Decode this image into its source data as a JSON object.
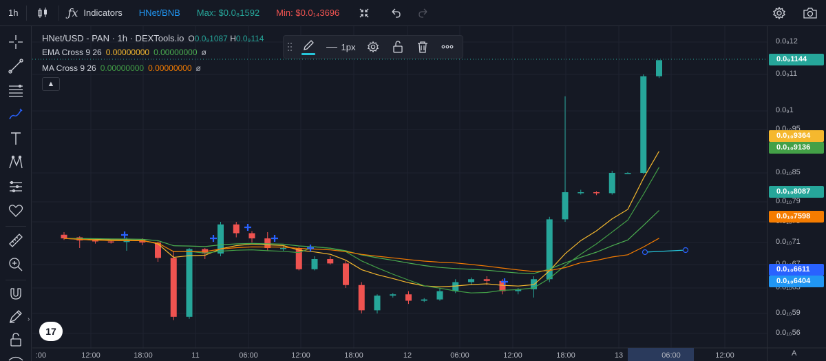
{
  "toolbar": {
    "interval": "1h",
    "indicators_label": "Indicators",
    "pair": "HNet/BNB",
    "max": "Max: $0.0₈1592",
    "min": "Min: $0.0₁₄3696"
  },
  "legend": {
    "title": "HNet/USD - PAN · 1h · DEXTools.io",
    "o_label": "O",
    "o_value": "0.0₉1087",
    "h_label": "H",
    "h_value": "0.0₉114",
    "ema_name": "EMA Cross 9 26",
    "ema_v1": "0.00000000",
    "ema_v2": "0.00000000",
    "ema_v3": "ø",
    "ma_name": "MA Cross 9 26",
    "ma_v1": "0.00000000",
    "ma_v2": "0.00000000",
    "ma_v3": "ø"
  },
  "drawing_toolbar": {
    "width_label": "1px"
  },
  "colors": {
    "bg": "#151924",
    "up": "#26a69a",
    "down": "#ef5350",
    "ema_fast": "#f5b82e",
    "ema_slow": "#4caf50",
    "ma_fast": "#43a047",
    "ma_slow": "#f57c00",
    "blue": "#2962ff",
    "toolbar_pair": "#2196f3",
    "toolbar_max": "#26a69a",
    "toolbar_min": "#ef5350"
  },
  "chart_data": {
    "type": "candlestick",
    "title": "HNet/USD - PAN · 1h · DEXTools.io",
    "x_ticks": [
      ":00",
      "12:00",
      "18:00",
      "11",
      "06:00",
      "12:00",
      "18:00",
      "12",
      "06:00",
      "12:00",
      "18:00",
      "13",
      "06:00",
      "12:00"
    ],
    "price_ticks": [
      "0.0₉12",
      "0.0₉11",
      "0.0₉1",
      "0.0₁₀95",
      "0.0₁₀85",
      "0.0₁₀79",
      "0.0₁₀75",
      "0.0₁₀71",
      "0.0₁₀67",
      "0.0₁₀63",
      "0.0₁₀59",
      "0.0₁₀56"
    ],
    "price_labels": [
      {
        "text": "0.0₉1144",
        "color": "#26a69a"
      },
      {
        "text": "0.0₁₀9364",
        "color": "#f5b82e"
      },
      {
        "text": "0.0₁₀9136",
        "color": "#43a047"
      },
      {
        "text": "0.0₁₀8087",
        "color": "#26a69a"
      },
      {
        "text": "0.0₁₀7598",
        "color": "#f57c00"
      },
      {
        "text": "0.0₁₀6611",
        "color": "#2962ff"
      },
      {
        "text": "0.0₁₀6404",
        "color": "#2196f3"
      }
    ],
    "price_range": [
      5.52e-11,
      1.2e-09
    ],
    "candles_note": "approximate prices in units of 1e-10",
    "candles": [
      [
        7.25,
        7.3,
        7.15,
        7.18
      ],
      [
        7.2,
        7.22,
        7.0,
        7.14
      ],
      [
        7.14,
        7.18,
        7.08,
        7.12
      ],
      [
        7.12,
        7.15,
        7.08,
        7.11
      ],
      [
        7.11,
        7.2,
        6.95,
        7.15
      ],
      [
        7.15,
        7.18,
        7.05,
        7.1
      ],
      [
        7.1,
        7.12,
        6.75,
        6.82
      ],
      [
        6.82,
        6.95,
        5.8,
        5.85
      ],
      [
        5.85,
        7.0,
        5.82,
        6.98
      ],
      [
        6.98,
        7.0,
        6.8,
        6.9
      ],
      [
        6.9,
        7.5,
        6.85,
        7.45
      ],
      [
        7.45,
        7.5,
        7.2,
        7.28
      ],
      [
        7.28,
        7.32,
        7.1,
        7.18
      ],
      [
        7.18,
        7.3,
        6.95,
        7.0
      ],
      [
        7.0,
        7.05,
        6.95,
        7.0
      ],
      [
        7.0,
        7.02,
        6.6,
        6.62
      ],
      [
        6.62,
        6.85,
        6.6,
        6.8
      ],
      [
        6.8,
        6.85,
        6.7,
        6.72
      ],
      [
        6.72,
        6.78,
        6.3,
        6.35
      ],
      [
        6.35,
        6.4,
        5.9,
        5.95
      ],
      [
        5.95,
        6.2,
        5.9,
        6.18
      ],
      [
        6.18,
        6.22,
        6.15,
        6.2
      ],
      [
        6.2,
        6.25,
        6.05,
        6.1
      ],
      [
        6.1,
        6.14,
        6.08,
        6.12
      ],
      [
        6.12,
        6.3,
        6.1,
        6.25
      ],
      [
        6.25,
        6.45,
        6.22,
        6.4
      ],
      [
        6.4,
        6.48,
        6.35,
        6.45
      ],
      [
        6.45,
        6.5,
        6.35,
        6.42
      ],
      [
        6.42,
        6.45,
        6.2,
        6.25
      ],
      [
        6.25,
        6.3,
        6.2,
        6.28
      ],
      [
        6.28,
        6.5,
        6.15,
        6.45
      ],
      [
        6.45,
        7.6,
        6.4,
        7.55
      ],
      [
        7.55,
        8.3,
        7.5,
        8.1
      ],
      [
        8.1,
        8.15,
        8.05,
        8.1
      ],
      [
        8.1,
        8.12,
        8.04,
        8.08
      ],
      [
        8.08,
        8.55,
        8.05,
        8.5
      ],
      [
        8.5,
        8.52,
        8.48,
        8.5
      ],
      [
        8.5,
        11.0,
        8.48,
        10.95
      ],
      [
        10.95,
        11.44,
        10.9,
        11.44
      ]
    ],
    "grid": true
  }
}
